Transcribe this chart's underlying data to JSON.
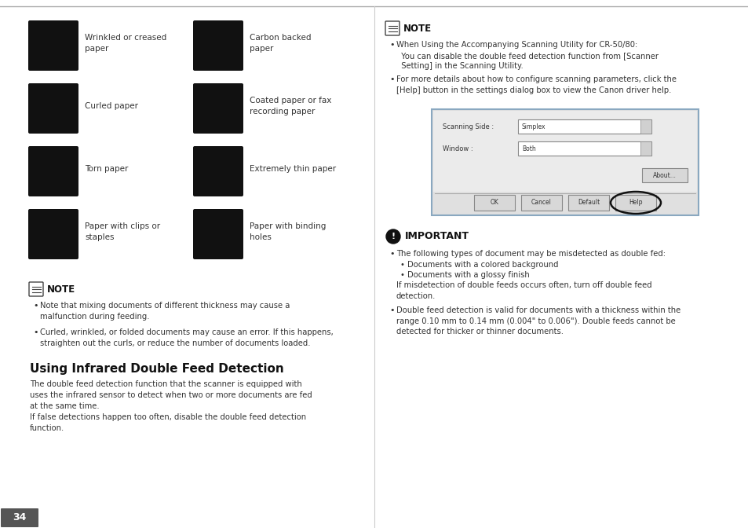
{
  "bg_color": "#ffffff",
  "page_num": "34",
  "page_num_bg": "#555555",
  "icons_left": [
    {
      "label": "Wrinkled or creased\npaper",
      "row": 0
    },
    {
      "label": "Curled paper",
      "row": 1
    },
    {
      "label": "Torn paper",
      "row": 2
    },
    {
      "label": "Paper with clips or\nstaples",
      "row": 3
    }
  ],
  "icons_right": [
    {
      "label": "Carbon backed\npaper",
      "row": 0
    },
    {
      "label": "Coated paper or fax\nrecording paper",
      "row": 1
    },
    {
      "label": "Extremely thin paper",
      "row": 2
    },
    {
      "label": "Paper with binding\nholes",
      "row": 3
    }
  ],
  "note1_title": "NOTE",
  "note1_bullets": [
    "Note that mixing documents of different thickness may cause a\nmalfunction during feeding.",
    "Curled, wrinkled, or folded documents may cause an error. If this happens,\nstraighten out the curls, or reduce the number of documents loaded."
  ],
  "section_title": "Using Infrared Double Feed Detection",
  "section_body": "The double feed detection function that the scanner is equipped with\nuses the infrared sensor to detect when two or more documents are fed\nat the same time.\nIf false detections happen too often, disable the double feed detection\nfunction.",
  "note2_title": "NOTE",
  "note2_bullets": [
    "When Using the Accompanying Scanning Utility for CR-50/80:\n  You can disable the double feed detection function from [Scanner\n  Setting] in the Scanning Utility.",
    "For more details about how to configure scanning parameters, click the\n[Help] button in the settings dialog box to view the Canon driver help."
  ],
  "important_title": "IMPORTANT",
  "important_b1_line1": "The following types of document may be misdetected as double fed:",
  "important_b1_sub": [
    "Documents with a colored background",
    "Documents with a glossy finish"
  ],
  "important_b1_end": "If misdetection of double feeds occurs often, turn off double feed\ndetection.",
  "important_b2": "Double feed detection is valid for documents with a thickness within the\nrange 0.10 mm to 0.14 mm (0.004\" to 0.006\"). Double feeds cannot be\ndetected for thicker or thinner documents."
}
